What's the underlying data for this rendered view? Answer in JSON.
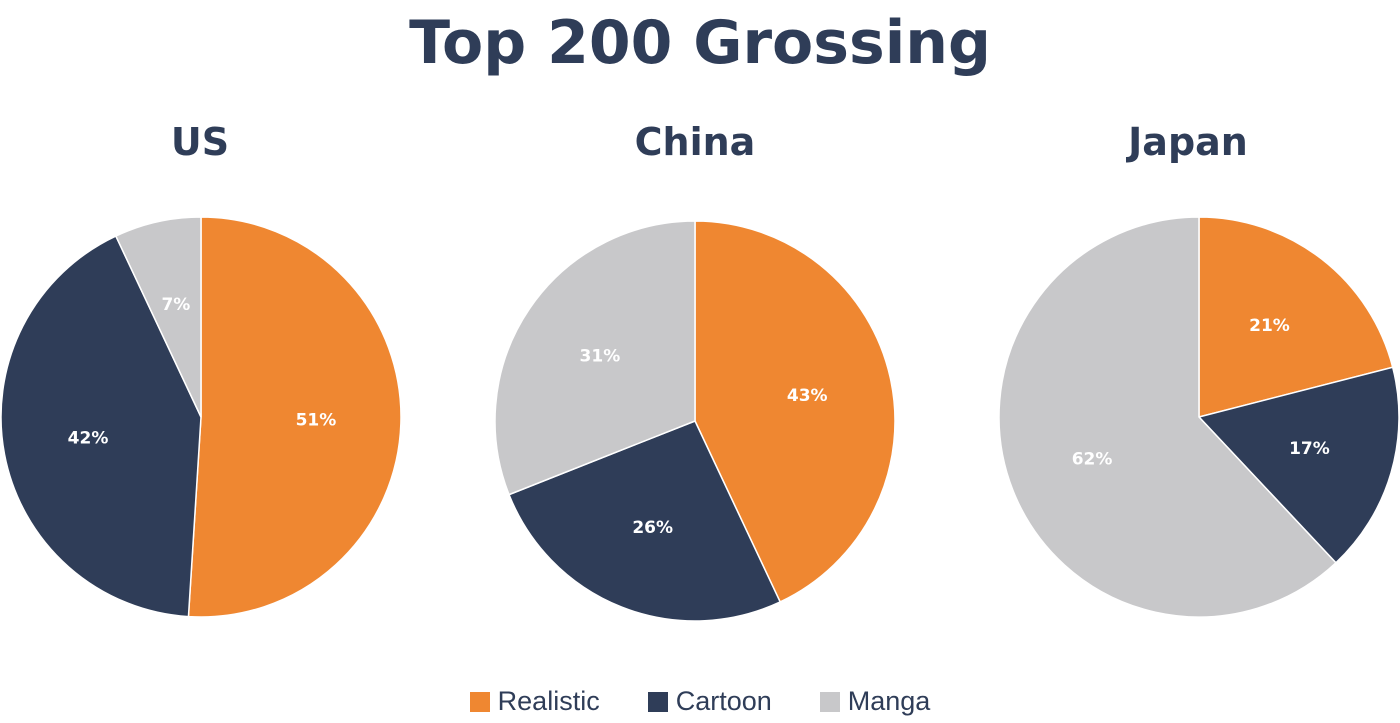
{
  "title": "Top 200 Grossing",
  "colors": {
    "Realistic": "#ef8731",
    "Cartoon": "#2f3d58",
    "Manga": "#c8c8ca"
  },
  "chart_data": [
    {
      "type": "pie",
      "title": "US",
      "slices": [
        {
          "label": "Realistic",
          "value": 51,
          "text": "51%"
        },
        {
          "label": "Cartoon",
          "value": 42,
          "text": "42%"
        },
        {
          "label": "Manga",
          "value": 7,
          "text": "7%"
        }
      ]
    },
    {
      "type": "pie",
      "title": "China",
      "slices": [
        {
          "label": "Realistic",
          "value": 43,
          "text": "43%"
        },
        {
          "label": "Cartoon",
          "value": 26,
          "text": "26%"
        },
        {
          "label": "Manga",
          "value": 31,
          "text": "31%"
        }
      ]
    },
    {
      "type": "pie",
      "title": "Japan",
      "slices": [
        {
          "label": "Realistic",
          "value": 21,
          "text": "21%"
        },
        {
          "label": "Cartoon",
          "value": 17,
          "text": "17%"
        },
        {
          "label": "Manga",
          "value": 62,
          "text": "62%"
        }
      ]
    }
  ],
  "legend": [
    {
      "label": "Realistic"
    },
    {
      "label": "Cartoon"
    },
    {
      "label": "Manga"
    }
  ]
}
